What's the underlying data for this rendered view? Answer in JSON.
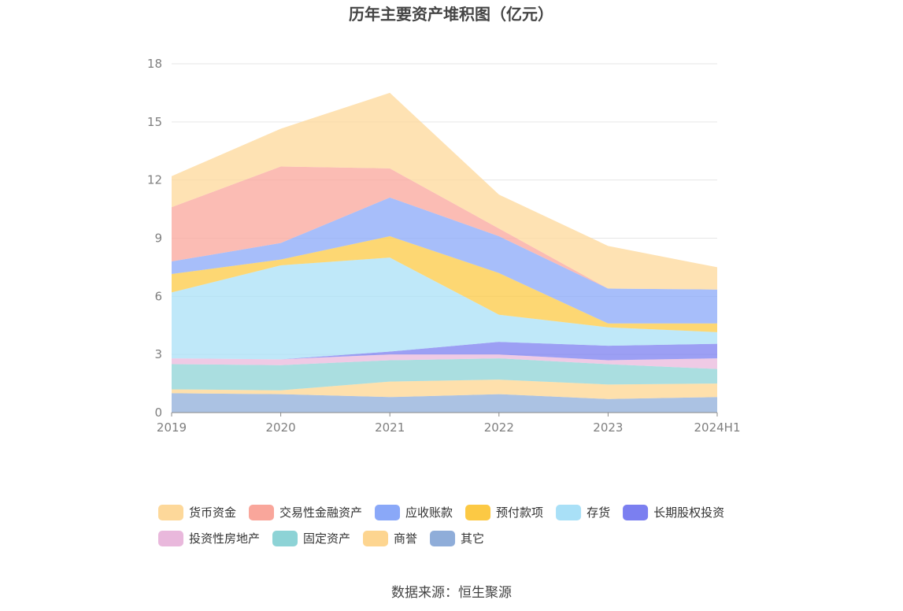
{
  "chart_data": {
    "type": "area",
    "stacked": true,
    "title": "历年主要资产堆积图（亿元）",
    "xlabel": "",
    "ylabel": "",
    "ylim": [
      0,
      18
    ],
    "yticks": [
      0,
      3,
      6,
      9,
      12,
      15,
      18
    ],
    "grid": true,
    "legend_position": "bottom",
    "categories": [
      "2019",
      "2020",
      "2021",
      "2022",
      "2023",
      "2024H1"
    ],
    "series": [
      {
        "name": "其它",
        "color": "#8fadd9",
        "values": [
          1.0,
          0.95,
          0.8,
          0.95,
          0.7,
          0.8
        ]
      },
      {
        "name": "商誉",
        "color": "#fdd590",
        "values": [
          0.2,
          0.2,
          0.8,
          0.75,
          0.75,
          0.7
        ]
      },
      {
        "name": "固定资产",
        "color": "#8dd3d6",
        "values": [
          1.3,
          1.3,
          1.1,
          1.1,
          1.05,
          0.75
        ]
      },
      {
        "name": "投资性房地产",
        "color": "#e9b8dc",
        "values": [
          0.3,
          0.3,
          0.3,
          0.2,
          0.2,
          0.55
        ]
      },
      {
        "name": "长期股权投资",
        "color": "#7b7ff0",
        "values": [
          0.0,
          0.0,
          0.15,
          0.65,
          0.75,
          0.75
        ]
      },
      {
        "name": "存货",
        "color": "#a9e0f7",
        "values": [
          3.4,
          4.85,
          4.85,
          1.4,
          0.95,
          0.6
        ]
      },
      {
        "name": "预付款项",
        "color": "#fcc944",
        "values": [
          0.95,
          0.3,
          1.1,
          2.15,
          0.2,
          0.45
        ]
      },
      {
        "name": "应收账款",
        "color": "#8aa8f8",
        "values": [
          0.65,
          0.85,
          2.0,
          1.9,
          1.8,
          1.75
        ]
      },
      {
        "name": "交易性金融资产",
        "color": "#f9a69b",
        "values": [
          2.8,
          3.95,
          1.5,
          0.4,
          0.0,
          0.0
        ]
      },
      {
        "name": "货币资金",
        "color": "#fdd89a",
        "values": [
          1.6,
          1.95,
          3.9,
          1.75,
          2.2,
          1.15
        ]
      }
    ],
    "legend_order": [
      "货币资金",
      "交易性金融资产",
      "应收账款",
      "预付款项",
      "存货",
      "长期股权投资",
      "投资性房地产",
      "固定资产",
      "商誉",
      "其它"
    ]
  },
  "source_text": "数据来源：恒生聚源"
}
